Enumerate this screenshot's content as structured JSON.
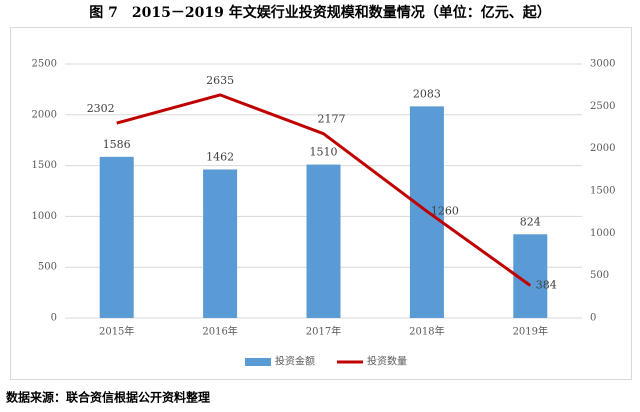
{
  "chart_data": {
    "type": "bar",
    "title": "图 7　2015－2019 年文娱行业投资规模和数量情况（单位：亿元、起）",
    "categories": [
      "2015年",
      "2016年",
      "2017年",
      "2018年",
      "2019年"
    ],
    "series": [
      {
        "name": "投资金额",
        "type": "bar",
        "color": "#5b9bd5",
        "values": [
          1586,
          1462,
          1510,
          2083,
          824
        ]
      },
      {
        "name": "投资数量",
        "type": "line",
        "axis": "y2",
        "color": "#c00000",
        "values": [
          2302,
          2635,
          2177,
          1260,
          384
        ]
      }
    ],
    "ylim": [
      0,
      2500
    ],
    "yticks": [
      0,
      500,
      1000,
      1500,
      2000,
      2500
    ],
    "y2lim": [
      0,
      3000
    ],
    "y2ticks": [
      0,
      500,
      1000,
      1500,
      2000,
      2500,
      3000
    ],
    "grid": true,
    "legend": "bottom",
    "source": "数据来源：联合资信根据公开资料整理"
  }
}
